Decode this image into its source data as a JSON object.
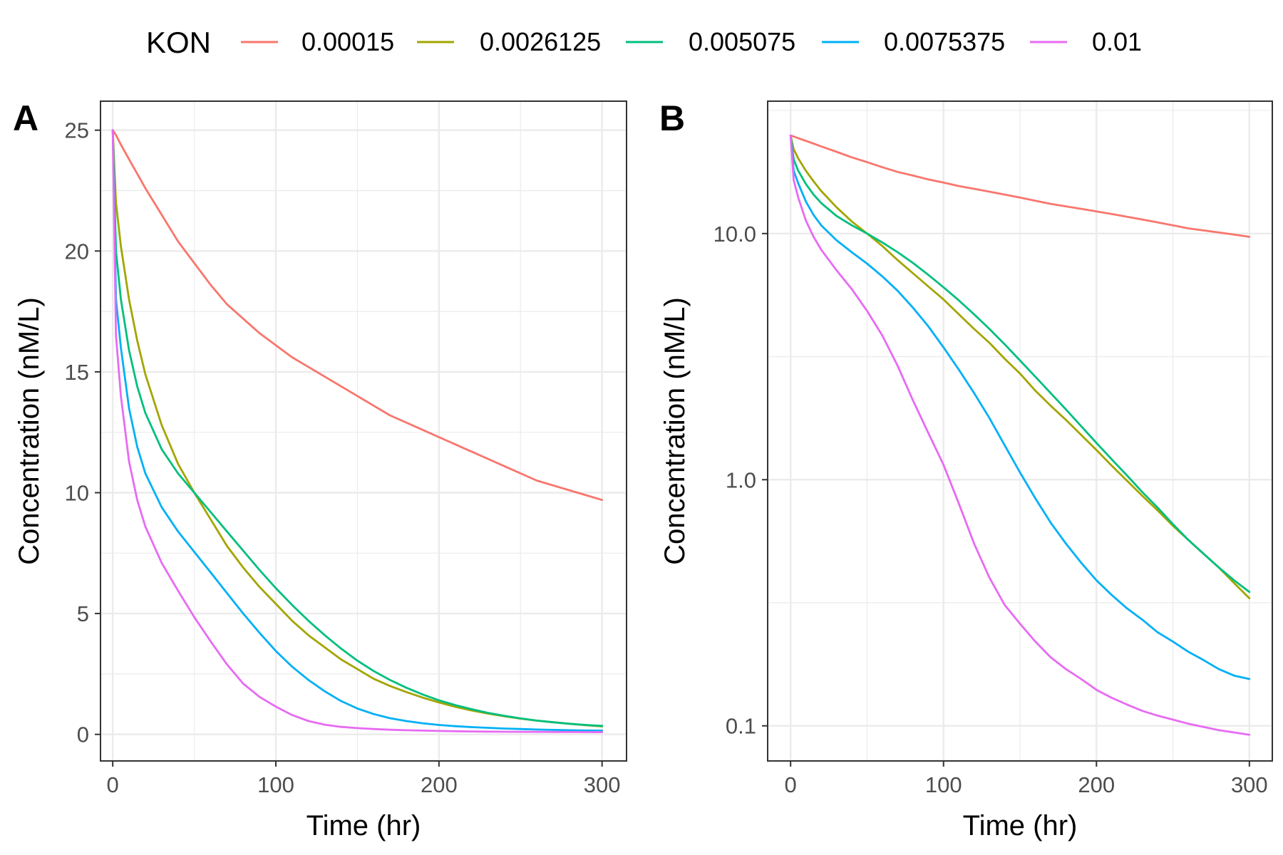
{
  "legend": {
    "title": "KON"
  },
  "colors": {
    "0.00015": "#F8766D",
    "0.0026125": "#A3A500",
    "0.005075": "#00BF7D",
    "0.0075375": "#00B0F6",
    "0.01": "#E76BF3"
  },
  "chart_data": [
    {
      "panel": "A",
      "type": "line",
      "xlabel": "Time (hr)",
      "ylabel": "Concentration (nM/L)",
      "xscale": "linear",
      "yscale": "linear",
      "xlim": [
        -7.5,
        315
      ],
      "ylim": [
        -1.1,
        26.2
      ],
      "xticks": [
        0,
        100,
        200,
        300
      ],
      "xtick_labels": [
        "0",
        "100",
        "200",
        "300"
      ],
      "yticks": [
        0,
        5,
        10,
        15,
        20,
        25
      ],
      "ytick_labels": [
        "0",
        "5",
        "10",
        "15",
        "20",
        "25"
      ],
      "grid": true,
      "x": [
        0,
        2,
        5,
        10,
        15,
        20,
        30,
        40,
        50,
        60,
        70,
        80,
        90,
        100,
        110,
        120,
        130,
        140,
        150,
        160,
        170,
        180,
        190,
        200,
        210,
        220,
        230,
        240,
        250,
        260,
        270,
        280,
        290,
        300
      ],
      "series": [
        {
          "name": "0.00015",
          "values": [
            25,
            24.8,
            24.4,
            23.8,
            23.2,
            22.6,
            21.5,
            20.4,
            19.5,
            18.6,
            17.8,
            17.2,
            16.6,
            16.1,
            15.6,
            15.2,
            14.8,
            14.4,
            14.0,
            13.6,
            13.2,
            12.9,
            12.6,
            12.3,
            12.0,
            11.7,
            11.4,
            11.1,
            10.8,
            10.5,
            10.3,
            10.1,
            9.9,
            9.7
          ]
        },
        {
          "name": "0.0026125",
          "values": [
            25,
            22.0,
            20.2,
            18.0,
            16.3,
            14.9,
            12.8,
            11.2,
            10.0,
            8.9,
            7.8,
            6.9,
            6.1,
            5.4,
            4.7,
            4.1,
            3.6,
            3.1,
            2.7,
            2.3,
            2.0,
            1.75,
            1.52,
            1.32,
            1.14,
            0.99,
            0.86,
            0.75,
            0.65,
            0.57,
            0.5,
            0.44,
            0.38,
            0.33
          ]
        },
        {
          "name": "0.005075",
          "values": [
            25,
            20.0,
            18.0,
            15.9,
            14.4,
            13.3,
            11.8,
            10.8,
            10.0,
            9.2,
            8.4,
            7.6,
            6.8,
            6.05,
            5.35,
            4.7,
            4.1,
            3.55,
            3.05,
            2.62,
            2.25,
            1.93,
            1.65,
            1.41,
            1.21,
            1.04,
            0.89,
            0.77,
            0.66,
            0.57,
            0.5,
            0.44,
            0.39,
            0.35
          ]
        },
        {
          "name": "0.0075375",
          "values": [
            25,
            18.0,
            16.0,
            13.5,
            11.9,
            10.8,
            9.4,
            8.4,
            7.55,
            6.7,
            5.85,
            5.0,
            4.2,
            3.45,
            2.8,
            2.25,
            1.78,
            1.38,
            1.07,
            0.84,
            0.67,
            0.55,
            0.46,
            0.39,
            0.34,
            0.3,
            0.27,
            0.24,
            0.22,
            0.2,
            0.185,
            0.17,
            0.16,
            0.155
          ]
        },
        {
          "name": "0.01",
          "values": [
            25,
            16.5,
            14.0,
            11.3,
            9.7,
            8.6,
            7.1,
            5.95,
            4.85,
            3.85,
            2.9,
            2.1,
            1.55,
            1.15,
            0.8,
            0.55,
            0.4,
            0.31,
            0.26,
            0.22,
            0.19,
            0.17,
            0.155,
            0.14,
            0.13,
            0.122,
            0.115,
            0.11,
            0.106,
            0.102,
            0.099,
            0.096,
            0.094,
            0.092
          ]
        }
      ]
    },
    {
      "panel": "B",
      "type": "line",
      "xlabel": "Time (hr)",
      "ylabel": "Concentration (nM/L)",
      "xscale": "linear",
      "yscale": "log10",
      "xlim": [
        -15,
        315
      ],
      "ylim": [
        0.072,
        34.5
      ],
      "xticks": [
        0,
        100,
        200,
        300
      ],
      "xtick_labels": [
        "0",
        "100",
        "200",
        "300"
      ],
      "yticks": [
        0.1,
        1,
        10
      ],
      "ytick_labels": [
        "0.1",
        "1.0",
        "10.0"
      ],
      "grid": true,
      "x": "same as panel A",
      "series": "same values as panel A"
    }
  ]
}
